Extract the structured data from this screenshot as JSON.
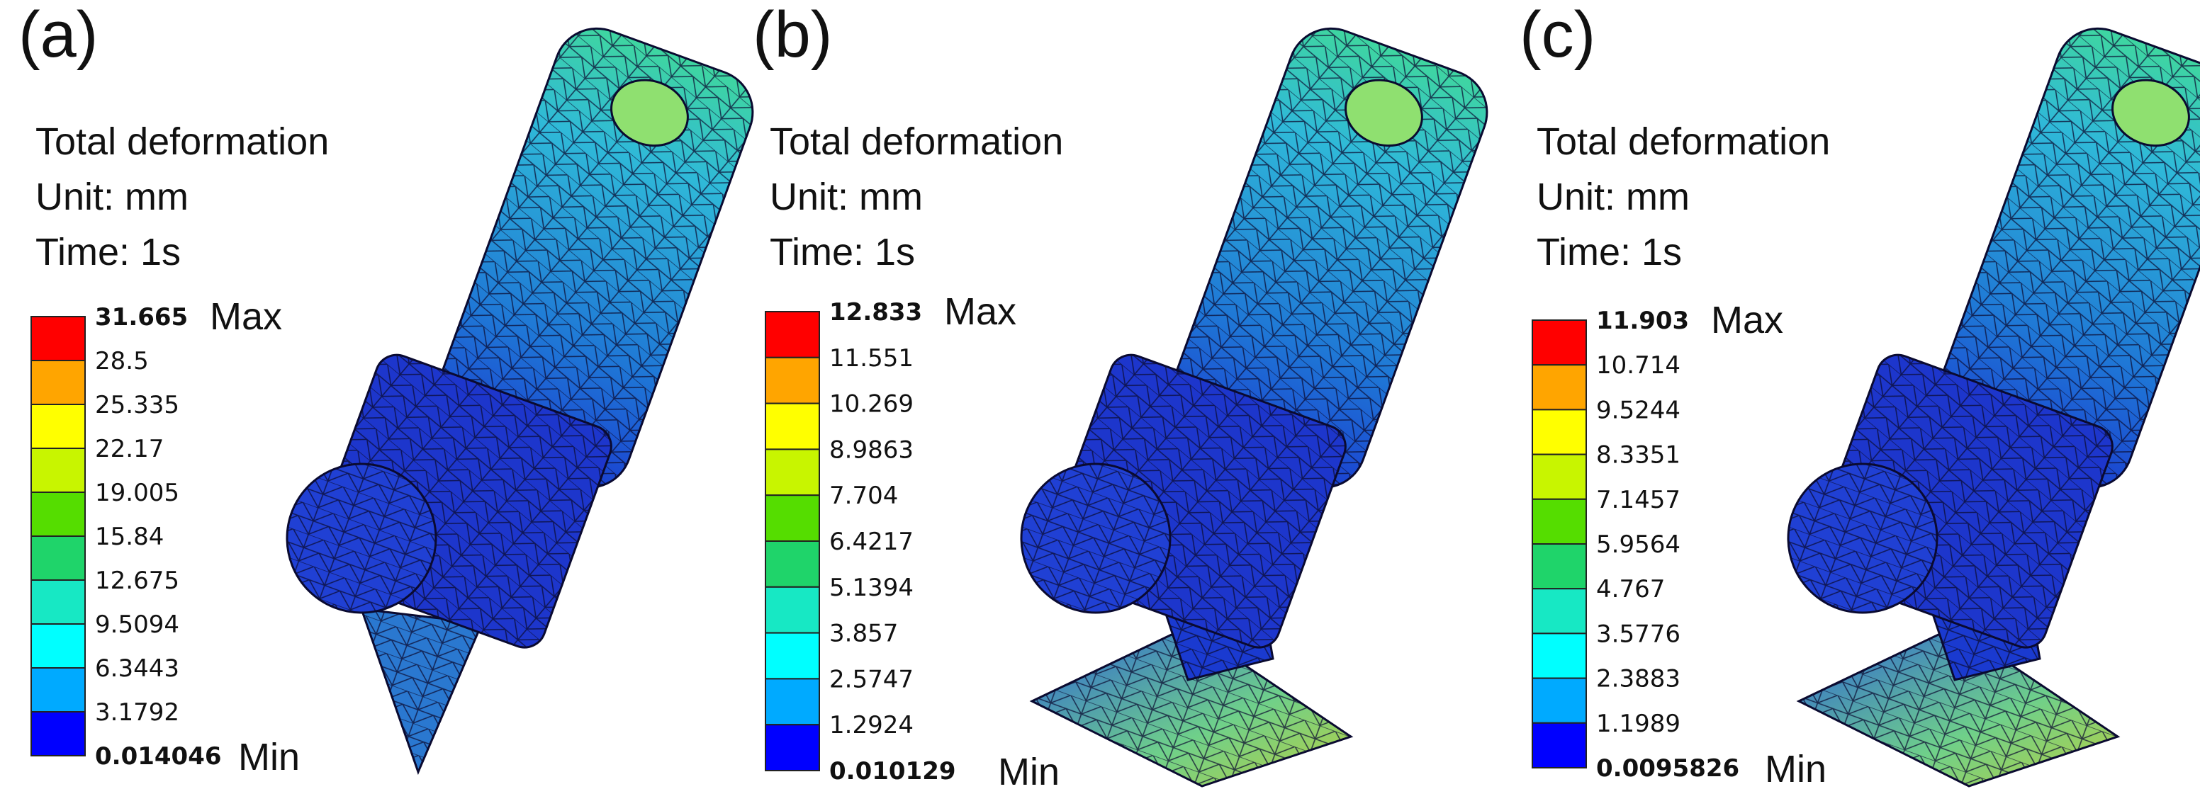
{
  "panels": [
    {
      "label": "(a)",
      "title": "Total deformation",
      "unit": "Unit: mm",
      "time": "Time: 1s",
      "legend": {
        "values": [
          31.665,
          28.5,
          25.335,
          22.17,
          19.005,
          15.84,
          12.675,
          9.5094,
          6.3443,
          3.1792,
          0.014046
        ],
        "max": "Max",
        "min": "Min"
      }
    },
    {
      "label": "(b)",
      "title": "Total deformation",
      "unit": "Unit: mm",
      "time": "Time: 1s",
      "legend": {
        "values": [
          12.833,
          11.551,
          10.269,
          8.9863,
          7.704,
          6.4217,
          5.1394,
          3.857,
          2.5747,
          1.2924,
          0.010129
        ],
        "max": "Max",
        "min": "Min"
      }
    },
    {
      "label": "(c)",
      "title": "Total deformation",
      "unit": "Unit: mm",
      "time": "Time: 1s",
      "legend": {
        "values": [
          11.903,
          10.714,
          9.5244,
          8.3351,
          7.1457,
          5.9564,
          4.767,
          3.5776,
          2.3883,
          1.1989,
          0.0095826
        ],
        "max": "Max",
        "min": "Min"
      }
    }
  ]
}
